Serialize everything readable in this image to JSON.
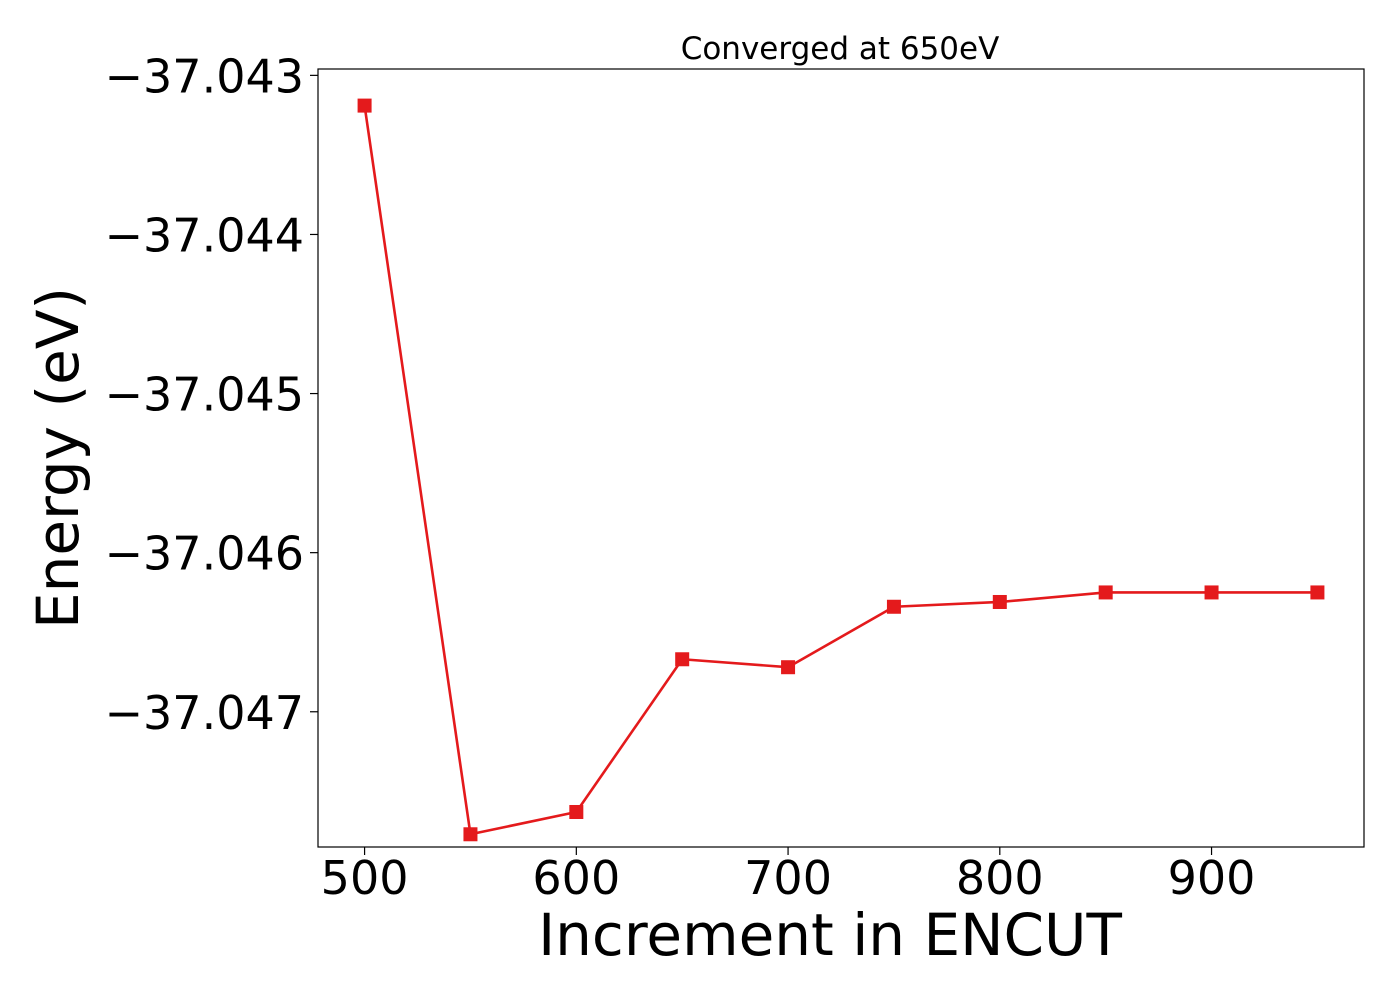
{
  "chart_data": {
    "type": "line",
    "title": "Converged at 650eV",
    "xlabel": "Increment in ENCUT",
    "ylabel": "Energy (eV)",
    "xlim": [
      478,
      972
    ],
    "ylim": [
      -37.04785,
      -37.04296
    ],
    "xticks": [
      500,
      600,
      700,
      800,
      900
    ],
    "xtick_labels": [
      "500",
      "600",
      "700",
      "800",
      "900"
    ],
    "yticks": [
      -37.043,
      -37.044,
      -37.045,
      -37.046,
      -37.047
    ],
    "ytick_labels": [
      "−37.043",
      "−37.044",
      "−37.045",
      "−37.046",
      "−37.047"
    ],
    "grid": false,
    "legend": "none",
    "series": [
      {
        "color": "#e41a1c",
        "marker": "square",
        "x": [
          500,
          550,
          600,
          650,
          700,
          750,
          800,
          850,
          900,
          950
        ],
        "y": [
          -37.04319,
          -37.04777,
          -37.04763,
          -37.04667,
          -37.04672,
          -37.04634,
          -37.04631,
          -37.04625,
          -37.04625,
          -37.04625
        ]
      }
    ]
  }
}
